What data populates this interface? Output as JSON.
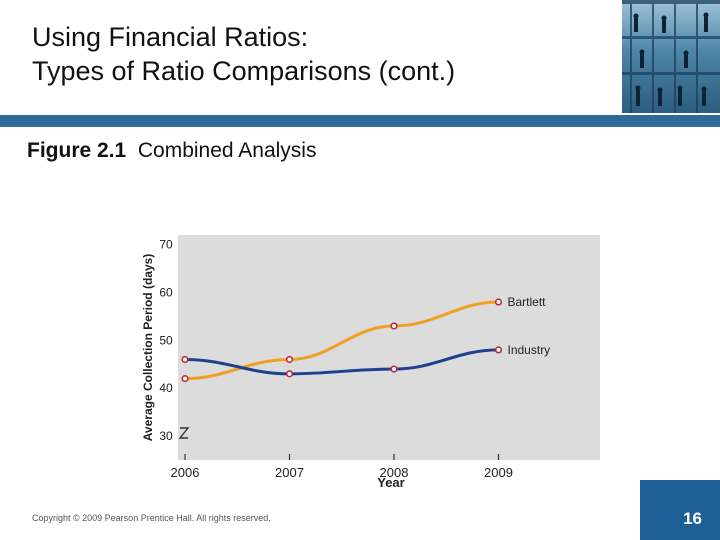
{
  "slide": {
    "title_line1": "Using Financial Ratios:",
    "title_line2": "Types of Ratio Comparisons (cont.)",
    "figure_label": "Figure 2.1",
    "figure_title": "Combined Analysis",
    "copyright": "Copyright © 2009 Pearson Prentice Hall. All rights reserved.",
    "page_number": "16"
  },
  "colors": {
    "accent_bar": "#2d6b9a",
    "page_box": "#1f5f97",
    "plot_bg": "#dcdcdc",
    "bartlett": "#f0a020",
    "industry": "#1f3f8f",
    "marker": "#c0283c"
  },
  "chart_data": {
    "type": "line",
    "title": "Combined Analysis",
    "xlabel": "Year",
    "ylabel": "Average Collection Period (days)",
    "categories": [
      "2006",
      "2007",
      "2008",
      "2009"
    ],
    "y_ticks": [
      "70",
      "60",
      "50",
      "40",
      "30"
    ],
    "ylim": [
      25,
      72
    ],
    "series": [
      {
        "name": "Bartlett",
        "values": [
          42,
          46,
          53,
          58
        ]
      },
      {
        "name": "Industry",
        "values": [
          46,
          43,
          44,
          48
        ]
      }
    ],
    "legend_placement": "inline labels at right end of each line",
    "grid": false
  }
}
